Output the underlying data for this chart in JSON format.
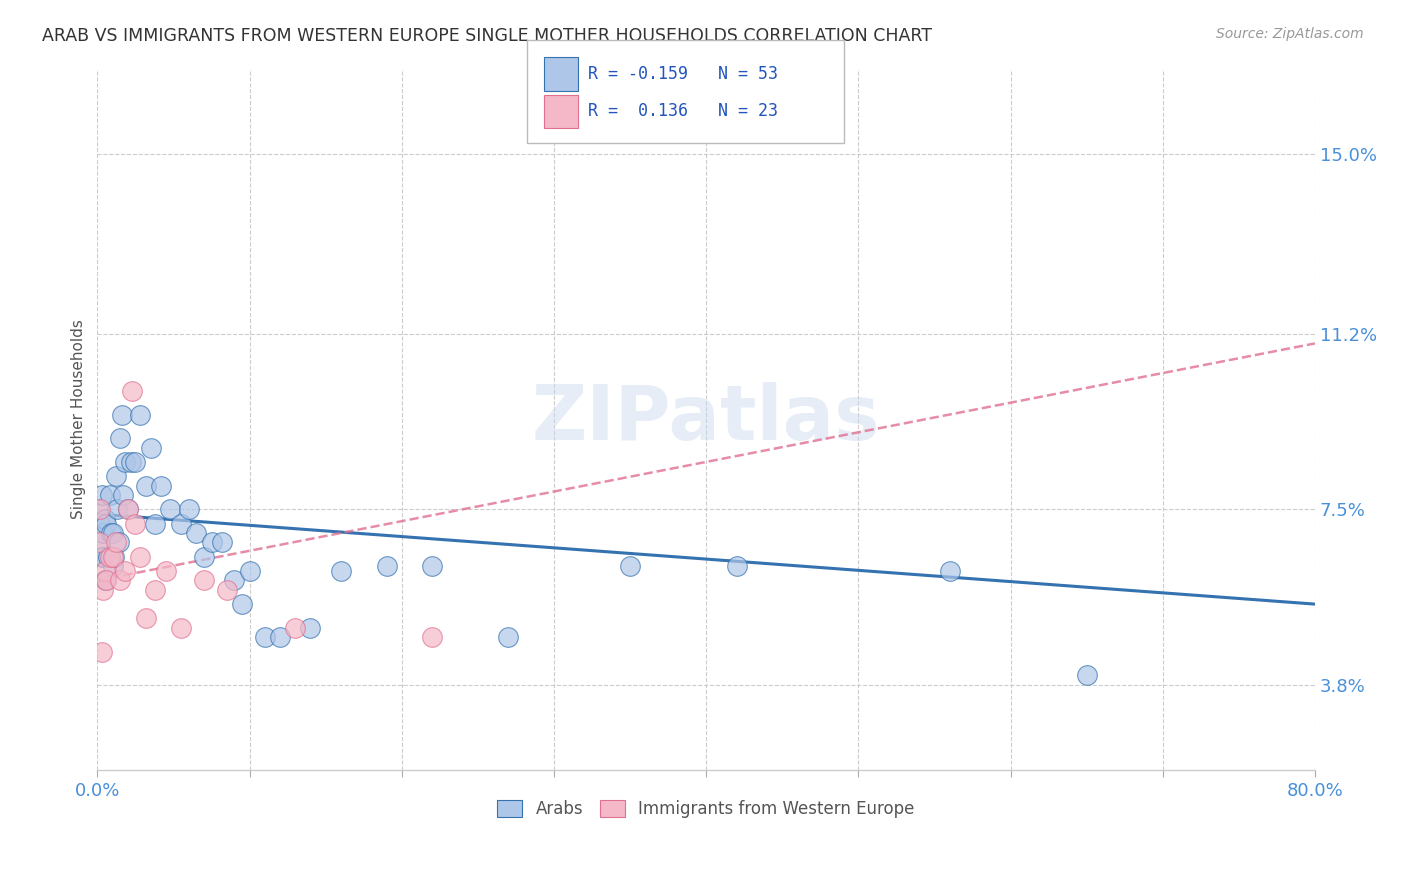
{
  "title": "ARAB VS IMMIGRANTS FROM WESTERN EUROPE SINGLE MOTHER HOUSEHOLDS CORRELATION CHART",
  "source": "Source: ZipAtlas.com",
  "ylabel": "Single Mother Households",
  "xlim": [
    0.0,
    0.8
  ],
  "ylim": [
    0.02,
    0.168
  ],
  "xticks": [
    0.0,
    0.1,
    0.2,
    0.3,
    0.4,
    0.5,
    0.6,
    0.7,
    0.8
  ],
  "xticklabels": [
    "0.0%",
    "",
    "",
    "",
    "",
    "",
    "",
    "",
    "80.0%"
  ],
  "yticks": [
    0.038,
    0.075,
    0.112,
    0.15
  ],
  "yticklabels": [
    "3.8%",
    "7.5%",
    "11.2%",
    "15.0%"
  ],
  "legend_labels": [
    "Arabs",
    "Immigrants from Western Europe"
  ],
  "arab_R": "-0.159",
  "arab_N": "53",
  "imm_R": "0.136",
  "imm_N": "23",
  "arab_color": "#aec6e8",
  "arab_line_color": "#3572b0",
  "imm_color": "#f5b8c8",
  "imm_line_color": "#e07090",
  "grid_color": "#cccccc",
  "title_color": "#333333",
  "tick_color": "#4a90d9",
  "watermark": "ZIPatlas",
  "arab_x": [
    0.001,
    0.002,
    0.002,
    0.003,
    0.003,
    0.004,
    0.004,
    0.005,
    0.005,
    0.006,
    0.006,
    0.007,
    0.008,
    0.009,
    0.01,
    0.01,
    0.011,
    0.012,
    0.013,
    0.014,
    0.015,
    0.016,
    0.017,
    0.018,
    0.02,
    0.022,
    0.025,
    0.028,
    0.032,
    0.035,
    0.038,
    0.042,
    0.048,
    0.055,
    0.06,
    0.065,
    0.07,
    0.075,
    0.082,
    0.09,
    0.095,
    0.1,
    0.11,
    0.12,
    0.14,
    0.16,
    0.19,
    0.22,
    0.27,
    0.35,
    0.42,
    0.56,
    0.65
  ],
  "arab_y": [
    0.075,
    0.072,
    0.068,
    0.078,
    0.065,
    0.07,
    0.065,
    0.073,
    0.06,
    0.072,
    0.06,
    0.065,
    0.078,
    0.07,
    0.07,
    0.063,
    0.065,
    0.082,
    0.075,
    0.068,
    0.09,
    0.095,
    0.078,
    0.085,
    0.075,
    0.085,
    0.085,
    0.095,
    0.08,
    0.088,
    0.072,
    0.08,
    0.075,
    0.072,
    0.075,
    0.07,
    0.065,
    0.068,
    0.068,
    0.06,
    0.055,
    0.062,
    0.048,
    0.048,
    0.05,
    0.062,
    0.063,
    0.063,
    0.048,
    0.063,
    0.063,
    0.062,
    0.04
  ],
  "imm_x": [
    0.001,
    0.002,
    0.003,
    0.004,
    0.005,
    0.006,
    0.008,
    0.01,
    0.012,
    0.015,
    0.018,
    0.02,
    0.023,
    0.025,
    0.028,
    0.032,
    0.038,
    0.045,
    0.055,
    0.07,
    0.085,
    0.13,
    0.22
  ],
  "imm_y": [
    0.068,
    0.075,
    0.045,
    0.058,
    0.062,
    0.06,
    0.065,
    0.065,
    0.068,
    0.06,
    0.062,
    0.075,
    0.1,
    0.072,
    0.065,
    0.052,
    0.058,
    0.062,
    0.05,
    0.06,
    0.058,
    0.05,
    0.048
  ],
  "arab_line_start_y": 0.074,
  "arab_line_end_y": 0.055,
  "imm_line_start_y": 0.06,
  "imm_line_end_y": 0.11,
  "imm_line_x_end": 0.8
}
